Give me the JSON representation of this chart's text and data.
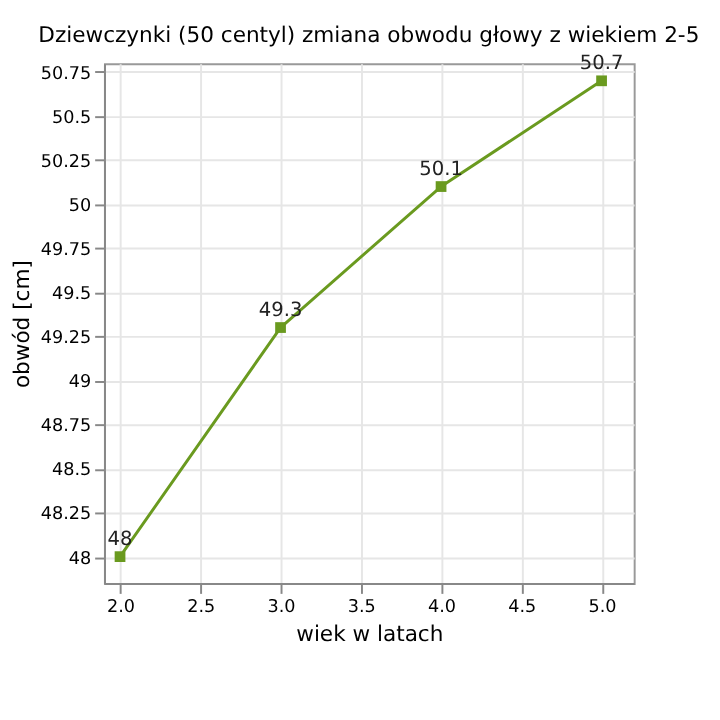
{
  "chart_data": {
    "type": "line",
    "title": "Dziewczynki (50 centyl) zmiana obwodu głowy z wiekiem 2-5",
    "xlabel": "wiek w latach",
    "ylabel": "obwód [cm]",
    "x": [
      2,
      3,
      4,
      5
    ],
    "series": [
      {
        "color": "#6a9a1f",
        "values": [
          48,
          49.3,
          50.1,
          50.7
        ]
      }
    ],
    "xlim": [
      1.9,
      5.2
    ],
    "xticks": [
      {
        "value": 2,
        "label": "2.0"
      },
      2.5,
      {
        "value": 3,
        "label": "3.0"
      },
      3.5,
      {
        "value": 4,
        "label": "4.0"
      },
      4.5,
      {
        "value": 5,
        "label": "5.0"
      }
    ],
    "ylim": [
      47.85,
      50.8
    ],
    "yticks": [
      48,
      48.25,
      48.5,
      48.75,
      49,
      49.25,
      49.5,
      49.75,
      50,
      50.25,
      50.5,
      50.75
    ],
    "grid": true,
    "marker": "square",
    "line_style": "solid",
    "data_labels": true
  }
}
